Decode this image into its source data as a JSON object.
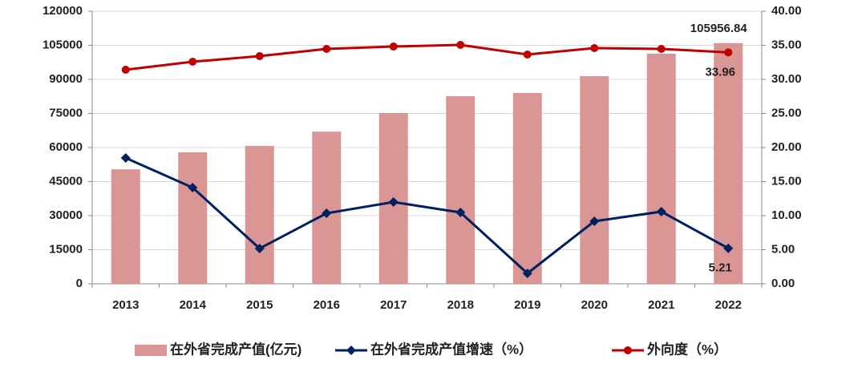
{
  "chart_data": {
    "type": "bar",
    "categories": [
      "2013",
      "2014",
      "2015",
      "2016",
      "2017",
      "2018",
      "2019",
      "2020",
      "2021",
      "2022"
    ],
    "series": [
      {
        "name": "在外省完成产值(亿元)",
        "type": "bar",
        "color": "#d99694",
        "values": [
          50400,
          57900,
          60700,
          67000,
          75200,
          82600,
          84000,
          91400,
          101300,
          105956.84
        ]
      },
      {
        "name": "在外省完成产值增速（%）",
        "type": "line",
        "marker": "diamond",
        "axis": "y2",
        "color": "#002060",
        "values": [
          18.47,
          14.12,
          5.18,
          10.35,
          12.0,
          10.47,
          1.53,
          9.18,
          10.59,
          5.21
        ]
      },
      {
        "name": "外向度（%）",
        "type": "line",
        "marker": "circle",
        "axis": "y2",
        "color": "#c00000",
        "values": [
          31.41,
          32.59,
          33.41,
          34.47,
          34.82,
          35.06,
          33.65,
          34.59,
          34.47,
          33.96
        ]
      }
    ],
    "ylim": [
      0,
      120000
    ],
    "yticks": [
      0,
      15000,
      30000,
      45000,
      60000,
      75000,
      90000,
      105000,
      120000
    ],
    "y2lim": [
      0,
      40
    ],
    "y2ticks": [
      {
        "value": 0,
        "label": "0.00"
      },
      {
        "value": 5,
        "label": "5.00"
      },
      {
        "value": 10,
        "label": "10.00"
      },
      {
        "value": 15,
        "label": "15.00"
      },
      {
        "value": 20,
        "label": "20.00"
      },
      {
        "value": 25,
        "label": "25.00"
      },
      {
        "value": 30,
        "label": "30.00"
      },
      {
        "value": 35,
        "label": "35.00"
      },
      {
        "value": 40,
        "label": "40.00"
      }
    ],
    "grid": true,
    "legend": "bottom"
  }
}
